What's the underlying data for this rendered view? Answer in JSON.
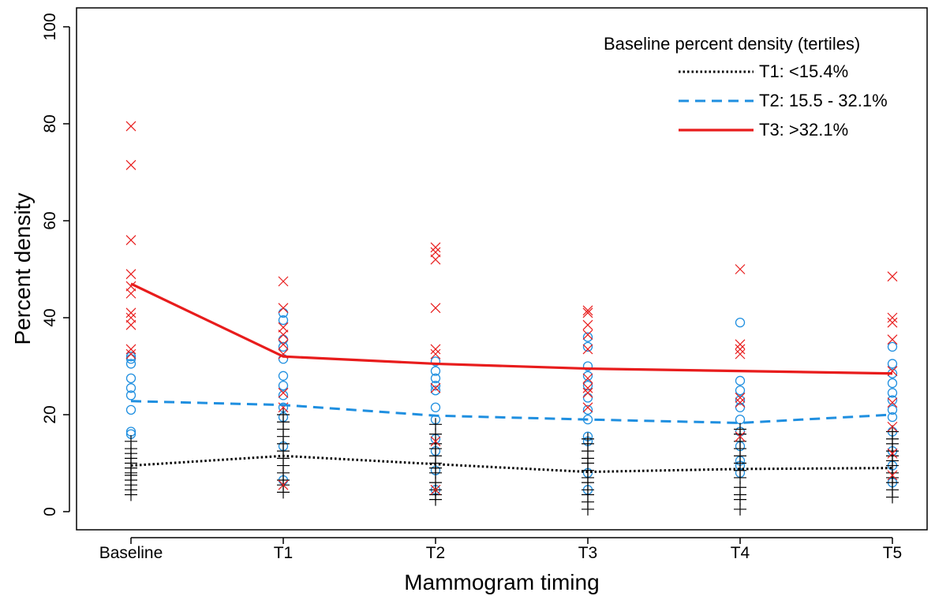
{
  "chart_data": {
    "type": "line",
    "xlabel": "Mammogram timing",
    "ylabel": "Percent density",
    "categories": [
      "Baseline",
      "T1",
      "T2",
      "T3",
      "T4",
      "T5"
    ],
    "ylim": [
      0,
      100
    ],
    "yticks": [
      0,
      20,
      40,
      60,
      80,
      100
    ],
    "grid": false,
    "legend": {
      "title": "Baseline percent density (tertiles)",
      "placement": "top-right"
    },
    "series": [
      {
        "name": "T1: <15.4%",
        "color": "#000000",
        "style": "dotted",
        "marker": "plus",
        "values": [
          9.5,
          11.5,
          9.8,
          8.2,
          8.8,
          9.0
        ],
        "points": [
          [
            3.5,
            4.5,
            5.5,
            6.5,
            7.5,
            8.0,
            9.0,
            10.0,
            11.0,
            12.0,
            13.0,
            14.5
          ],
          [
            4.0,
            5.5,
            6.5,
            8.0,
            9.5,
            11.0,
            12.5,
            14.0,
            15.5,
            17.0,
            18.5,
            20.0
          ],
          [
            2.5,
            3.5,
            4.5,
            6.0,
            8.0,
            9.0,
            10.0,
            11.5,
            13.0,
            14.0,
            16.0,
            18.0
          ],
          [
            0.5,
            2.0,
            3.5,
            4.5,
            6.0,
            7.0,
            8.5,
            10.0,
            11.0,
            12.5,
            14.0,
            15.0
          ],
          [
            0.5,
            2.5,
            3.5,
            5.0,
            7.0,
            8.5,
            10.0,
            11.5,
            13.0,
            14.5,
            16.0,
            17.0
          ],
          [
            3.0,
            4.5,
            6.0,
            7.0,
            8.0,
            9.5,
            10.5,
            11.5,
            12.5,
            14.0,
            15.0,
            16.5
          ]
        ]
      },
      {
        "name": "T2: 15.5 - 32.1%",
        "color": "#1f8fe0",
        "style": "dashed",
        "marker": "circle",
        "values": [
          22.8,
          22.0,
          19.8,
          19.0,
          18.3,
          20.0
        ],
        "points": [
          [
            16.0,
            16.5,
            21.0,
            24.0,
            25.5,
            27.5,
            30.5,
            31.5,
            32.0
          ],
          [
            6.5,
            13.5,
            19.5,
            21.5,
            24.0,
            26.0,
            28.0,
            31.5,
            34.0,
            35.5,
            39.5,
            41.0
          ],
          [
            4.5,
            8.5,
            12.5,
            15.0,
            19.0,
            21.5,
            25.0,
            26.0,
            27.5,
            29.0,
            31.0
          ],
          [
            4.5,
            8.0,
            14.5,
            15.5,
            19.0,
            21.0,
            23.5,
            26.0,
            28.0,
            30.0,
            34.0,
            36.0
          ],
          [
            8.0,
            9.5,
            10.5,
            13.5,
            16.5,
            19.0,
            21.5,
            23.0,
            25.0,
            27.0,
            39.0
          ],
          [
            6.0,
            9.5,
            12.5,
            16.5,
            19.5,
            21.0,
            23.0,
            24.5,
            26.5,
            28.5,
            30.5,
            34.0
          ]
        ]
      },
      {
        "name": "T3: >32.1%",
        "color": "#e81c1c",
        "style": "solid",
        "marker": "x",
        "values": [
          47.0,
          32.0,
          30.5,
          29.5,
          29.0,
          28.5
        ],
        "points": [
          [
            32.5,
            33.5,
            38.5,
            40.0,
            41.0,
            45.0,
            46.5,
            49.0,
            56.0,
            71.5,
            79.5
          ],
          [
            5.5,
            21.5,
            24.5,
            32.5,
            34.5,
            36.5,
            38.0,
            42.0,
            47.5
          ],
          [
            4.5,
            14.5,
            25.5,
            32.5,
            33.5,
            42.0,
            52.0,
            53.5,
            54.5
          ],
          [
            21.5,
            24.5,
            25.5,
            27.5,
            33.5,
            36.5,
            38.5,
            41.0,
            41.5
          ],
          [
            15.5,
            22.5,
            23.5,
            32.5,
            33.5,
            34.5,
            50.0
          ],
          [
            7.5,
            12.0,
            17.5,
            22.5,
            29.0,
            35.5,
            39.0,
            40.0,
            48.5
          ]
        ]
      }
    ]
  }
}
